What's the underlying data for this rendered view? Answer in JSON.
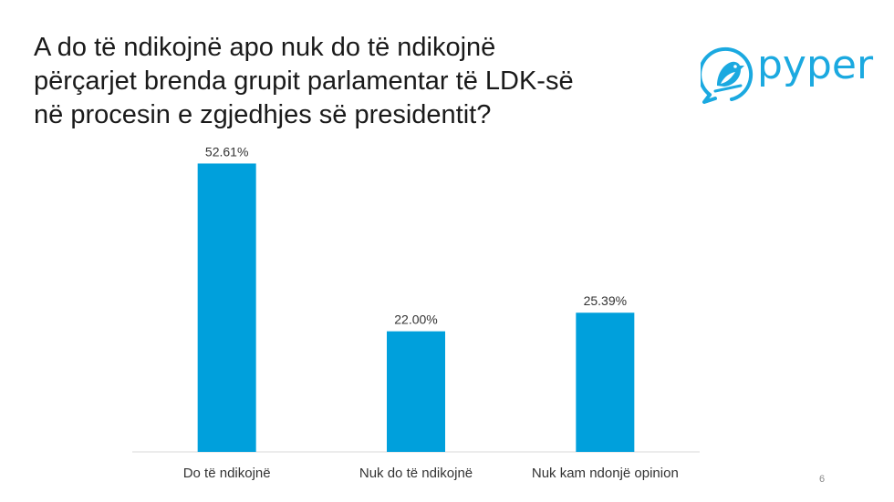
{
  "slide": {
    "title_lines": [
      "A do të ndikojnë apo nuk do të ndikojnë",
      "përçarjet brenda grupit parlamentar të LDK-së",
      "në procesin e zgjedhjes së presidentit?"
    ],
    "brand": "pyper",
    "page_number": "6",
    "accent_color": "#00a0dc",
    "logo_color": "#1ba9e0"
  },
  "chart_data": {
    "type": "bar",
    "title": "A do të ndikojnë apo nuk do të ndikojnë përçarjet brenda grupit parlamentar të LDK-së në procesin e zgjedhjes së presidentit?",
    "categories": [
      "Do të ndikojnë",
      "Nuk do të ndikojnë",
      "Nuk kam ndonjë opinion"
    ],
    "values": [
      52.61,
      22.0,
      25.39
    ],
    "value_labels": [
      "52.61%",
      "22.00%",
      "25.39%"
    ],
    "xlabel": "",
    "ylabel": "",
    "ylim": [
      0,
      60
    ],
    "grid": false,
    "legend": "none",
    "bar_color": "#00a0dc"
  }
}
